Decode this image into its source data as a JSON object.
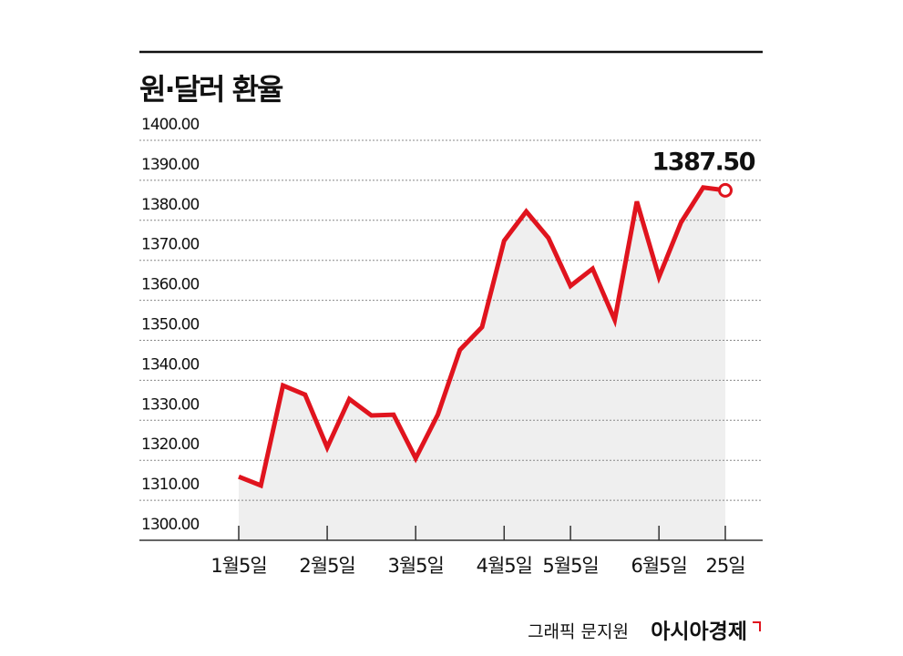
{
  "chart_data": {
    "type": "line",
    "title": "원·달러 환율",
    "categories": [
      "1월5일",
      null,
      null,
      null,
      "2월5일",
      null,
      null,
      null,
      "3월5일",
      null,
      null,
      null,
      "4월5일",
      null,
      null,
      "5월5일",
      null,
      null,
      null,
      "6월5일",
      null,
      null,
      "25일"
    ],
    "values": [
      1315.9,
      1313.7,
      1338.7,
      1336.4,
      1323.2,
      1335.3,
      1331.2,
      1331.4,
      1320.5,
      1331.4,
      1347.6,
      1353.3,
      1374.9,
      1382.2,
      1375.6,
      1363.6,
      1367.9,
      1355.1,
      1384.7,
      1365.8,
      1379.5,
      1388.2,
      1387.5
    ],
    "value_labels": [
      null,
      null,
      null,
      null,
      null,
      null,
      null,
      null,
      null,
      null,
      null,
      null,
      null,
      null,
      null,
      null,
      null,
      null,
      null,
      null,
      null,
      null,
      "1387.50"
    ],
    "color": "#e0141e",
    "area_color": "#efefef",
    "ylim": [
      1300,
      1400
    ],
    "yticks": [
      {
        "value": 1300,
        "label": "1300.00"
      },
      {
        "value": 1310,
        "label": "1310.00"
      },
      {
        "value": 1320,
        "label": "1320.00"
      },
      {
        "value": 1330,
        "label": "1330.00"
      },
      {
        "value": 1340,
        "label": "1340.00"
      },
      {
        "value": 1350,
        "label": "1350.00"
      },
      {
        "value": 1360,
        "label": "1360.00"
      },
      {
        "value": 1370,
        "label": "1370.00"
      },
      {
        "value": 1380,
        "label": "1380.00"
      },
      {
        "value": 1390,
        "label": "1390.00"
      },
      {
        "value": 1400,
        "label": "1400.00"
      }
    ],
    "grid": true,
    "credit": "그래픽 문지원",
    "source": "아시아경제"
  }
}
